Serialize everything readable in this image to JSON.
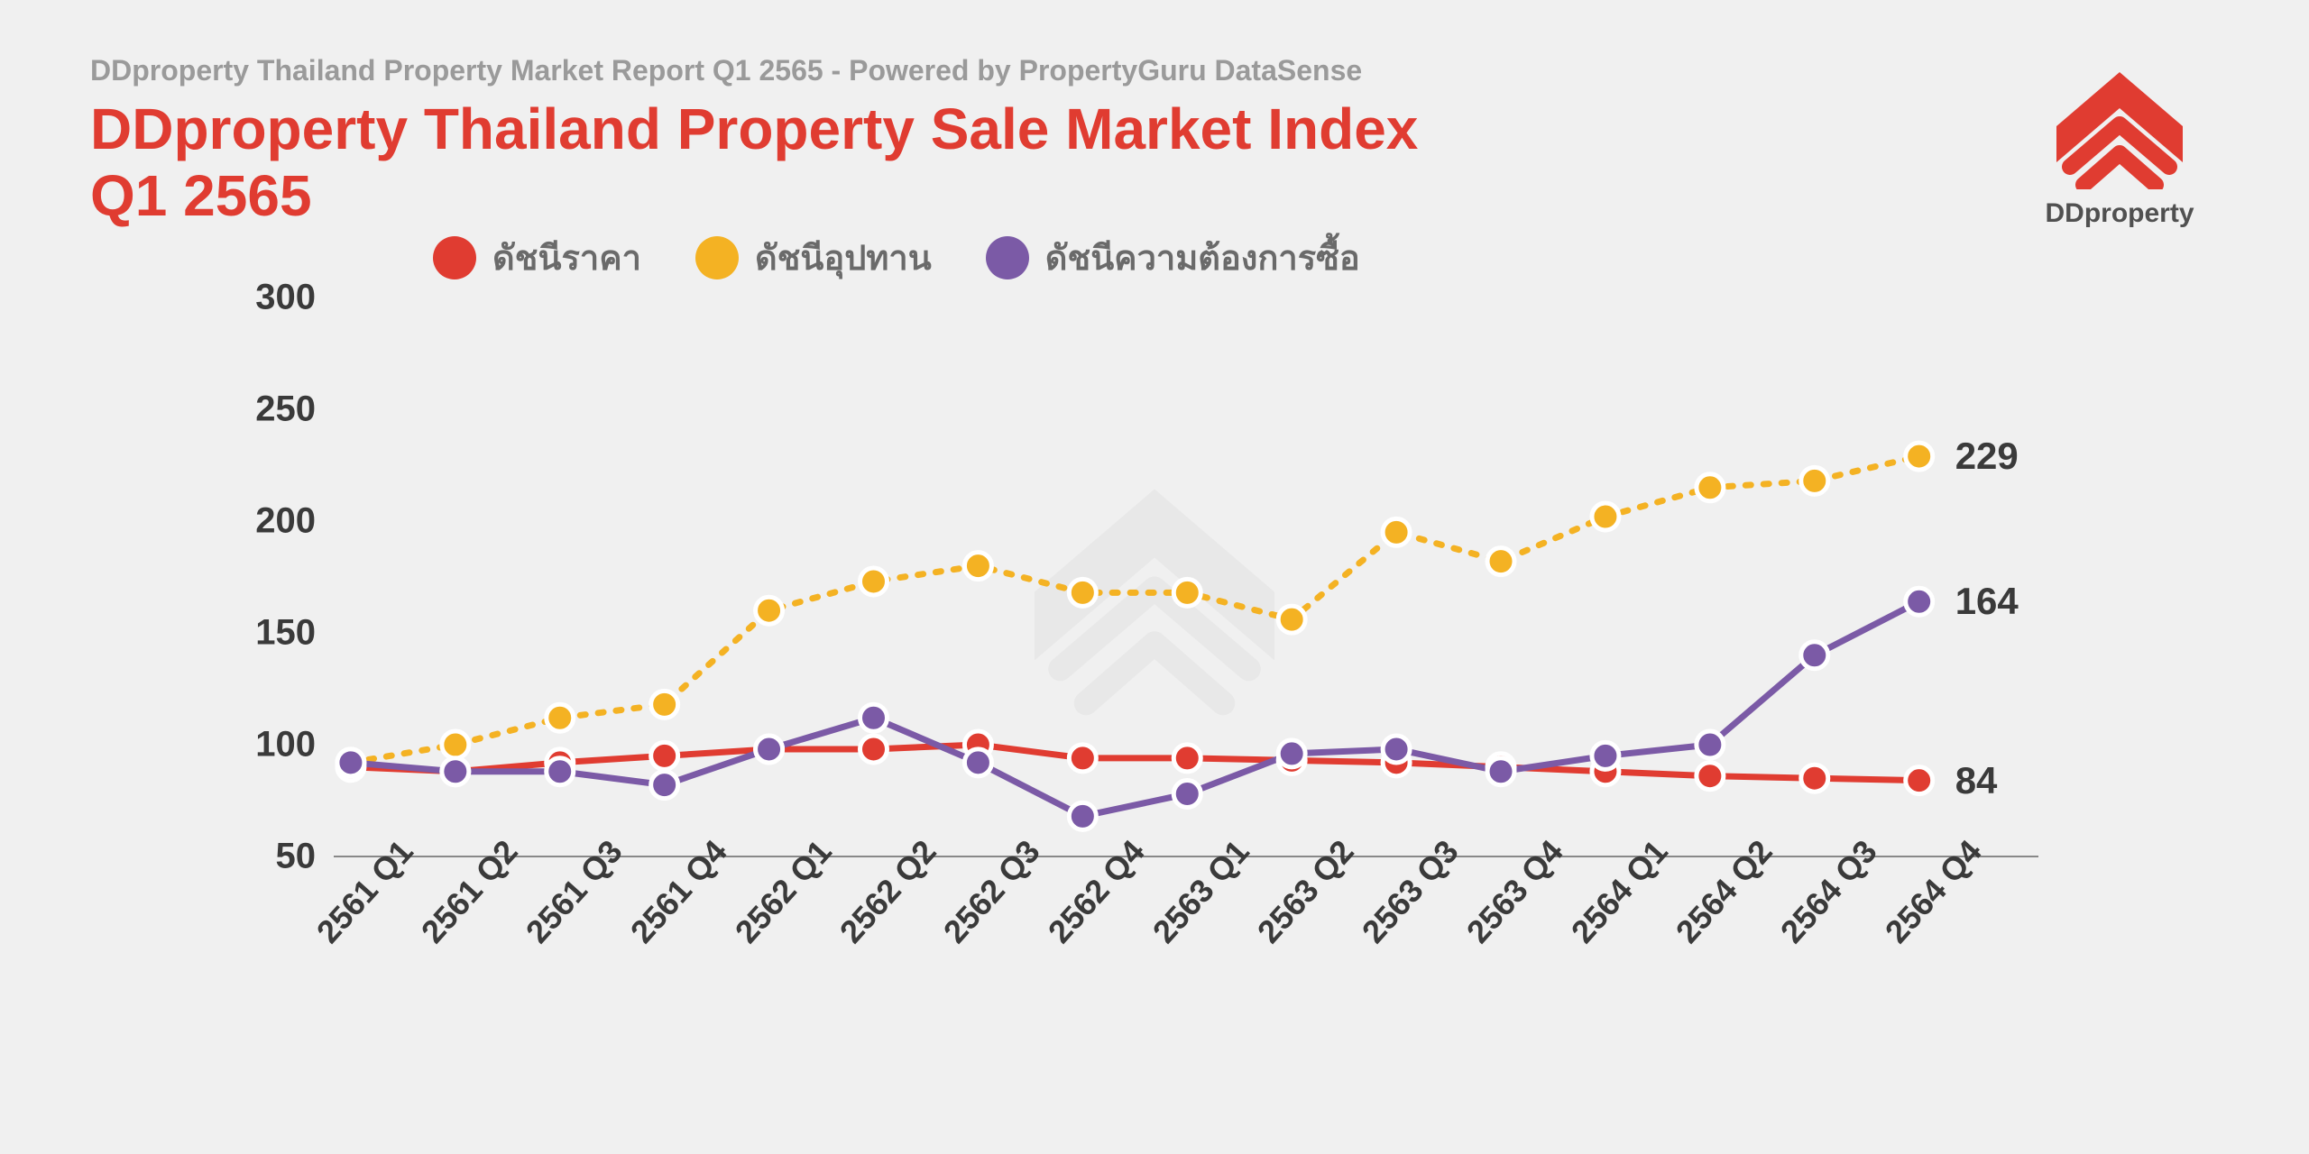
{
  "header": {
    "subtitle": "DDproperty Thailand Property Market Report Q1 2565 - Powered by PropertyGuru DataSense",
    "title_line1": "DDproperty Thailand Property Sale Market Index",
    "title_line2": "Q1 2565",
    "logo_text": "DDproperty"
  },
  "chart": {
    "type": "line",
    "background_color": "#f0f0f0",
    "title_color": "#e03c31",
    "subtitle_color": "#9a9a9a",
    "axis_label_color": "#3a3a3a",
    "ylim": [
      50,
      300
    ],
    "yticks": [
      50,
      100,
      150,
      200,
      250,
      300
    ],
    "categories": [
      "2561 Q1",
      "2561 Q2",
      "2561 Q3",
      "2561 Q4",
      "2562 Q1",
      "2562 Q2",
      "2562 Q3",
      "2562 Q4",
      "2563 Q1",
      "2563 Q2",
      "2563 Q3",
      "2563 Q4",
      "2564 Q1",
      "2564 Q2",
      "2564 Q3",
      "2564 Q4"
    ],
    "marker_radius": 15,
    "marker_stroke": "#ffffff",
    "marker_stroke_width": 5,
    "line_width": 7,
    "series": [
      {
        "name": "price_index",
        "label": "ดัชนีราคา",
        "color": "#e03c31",
        "dashed": false,
        "values": [
          90,
          88,
          92,
          95,
          98,
          98,
          100,
          94,
          94,
          93,
          92,
          90,
          88,
          86,
          85,
          84
        ],
        "end_label": "84"
      },
      {
        "name": "supply_index",
        "label": "ดัชนีอุปทาน",
        "color": "#f4b223",
        "dashed": true,
        "dash_pattern": "6 14",
        "values": [
          92,
          100,
          112,
          118,
          160,
          173,
          180,
          168,
          168,
          156,
          195,
          182,
          202,
          215,
          218,
          229
        ],
        "end_label": "229"
      },
      {
        "name": "demand_index",
        "label": "ดัชนีความต้องการซื้อ",
        "color": "#7b5aa6",
        "dashed": false,
        "values": [
          92,
          88,
          88,
          82,
          98,
          112,
          92,
          68,
          78,
          96,
          98,
          88,
          95,
          100,
          140,
          164
        ],
        "end_label": "164"
      }
    ]
  }
}
